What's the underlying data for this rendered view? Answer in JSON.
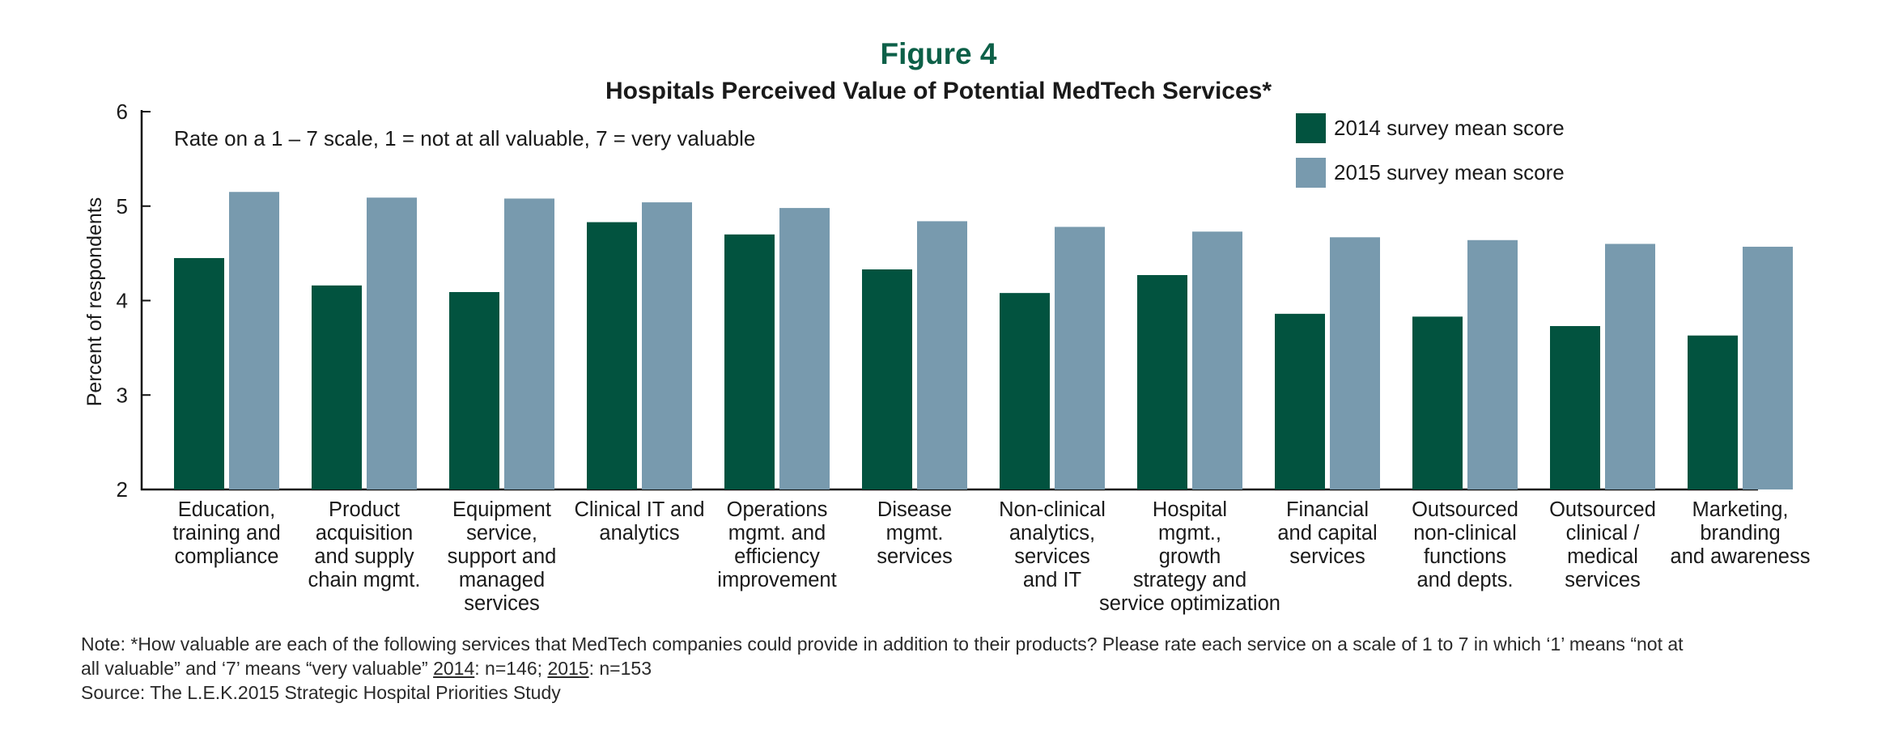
{
  "figure_label": "Figure 4",
  "chart_data": {
    "type": "bar",
    "title": "Hospitals Perceived Value of Potential MedTech Services*",
    "subtitle": "Rate on a 1 – 7 scale, 1 = not at all valuable, 7 = very valuable",
    "xlabel": "",
    "ylabel": "Percent of respondents",
    "ylim": [
      2,
      6
    ],
    "yticks": [
      2,
      3,
      4,
      5,
      6
    ],
    "grid": false,
    "legend_position": "top-right",
    "categories": [
      [
        "Education,",
        "training and",
        "compliance"
      ],
      [
        "Product",
        "acquisition",
        "and supply",
        "chain mgmt."
      ],
      [
        "Equipment",
        "service,",
        "support and",
        "managed",
        "services"
      ],
      [
        "Clinical IT and",
        "analytics"
      ],
      [
        "Operations",
        "mgmt. and",
        "efficiency",
        "improvement"
      ],
      [
        "Disease",
        "mgmt.",
        "services"
      ],
      [
        "Non-clinical",
        "analytics,",
        "services",
        "and IT"
      ],
      [
        "Hospital",
        "mgmt.,",
        "growth",
        "strategy and",
        "service optimization"
      ],
      [
        "Financial",
        "and capital",
        "services"
      ],
      [
        "Outsourced",
        "non-clinical",
        "functions",
        "and depts."
      ],
      [
        "Outsourced",
        "clinical /",
        "medical",
        "services"
      ],
      [
        "Marketing,",
        "branding",
        "and awareness"
      ]
    ],
    "series": [
      {
        "name": "2014 survey mean score",
        "color": "#02533f",
        "values": [
          4.45,
          4.16,
          4.09,
          4.83,
          4.7,
          4.33,
          4.08,
          4.27,
          3.86,
          3.83,
          3.73,
          3.63
        ]
      },
      {
        "name": "2015 survey mean score",
        "color": "#789aae",
        "values": [
          5.15,
          5.09,
          5.08,
          5.04,
          4.98,
          4.84,
          4.78,
          4.73,
          4.67,
          4.64,
          4.6,
          4.57
        ]
      }
    ]
  },
  "note": {
    "line1": "Note: *How valuable are each of the following services that MedTech companies could provide in addition to their products? Please rate each service on a scale of 1 to 7 in which ‘1’ means “not at",
    "line2_prefix": "all valuable” and ‘7’ means “very valuable” ",
    "year_2014": "2014",
    "n_2014": ": n=146; ",
    "year_2015": "2015",
    "n_2015": ": n=153",
    "source": "Source: The L.E.K.2015 Strategic Hospital Priorities Study"
  }
}
